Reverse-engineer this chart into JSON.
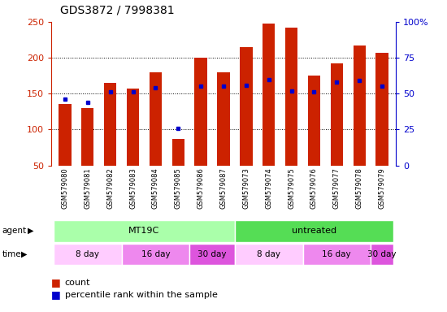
{
  "title": "GDS3872 / 7998381",
  "samples": [
    "GSM579080",
    "GSM579081",
    "GSM579082",
    "GSM579083",
    "GSM579084",
    "GSM579085",
    "GSM579086",
    "GSM579087",
    "GSM579073",
    "GSM579074",
    "GSM579075",
    "GSM579076",
    "GSM579077",
    "GSM579078",
    "GSM579079"
  ],
  "counts": [
    135,
    130,
    165,
    157,
    180,
    87,
    200,
    180,
    215,
    248,
    242,
    175,
    192,
    217,
    207
  ],
  "percentile_ranks": [
    46,
    44,
    51,
    51,
    54,
    26,
    55,
    55,
    56,
    60,
    52,
    51,
    58,
    59,
    55
  ],
  "bar_color": "#cc2200",
  "dot_color": "#0000cc",
  "y_min": 50,
  "y_max": 250,
  "y_ticks_left": [
    50,
    100,
    150,
    200,
    250
  ],
  "y_ticks_right": [
    0,
    25,
    50,
    75,
    100
  ],
  "grid_lines": [
    100,
    150,
    200
  ],
  "agent_groups": [
    {
      "label": "MT19C",
      "start": 0,
      "end": 8,
      "color": "#aaffaa"
    },
    {
      "label": "untreated",
      "start": 8,
      "end": 15,
      "color": "#55dd55"
    }
  ],
  "time_groups": [
    {
      "label": "8 day",
      "start": 0,
      "end": 3,
      "color": "#ffccff"
    },
    {
      "label": "16 day",
      "start": 3,
      "end": 6,
      "color": "#ee88ee"
    },
    {
      "label": "30 day",
      "start": 6,
      "end": 8,
      "color": "#dd55dd"
    },
    {
      "label": "8 day",
      "start": 8,
      "end": 11,
      "color": "#ffccff"
    },
    {
      "label": "16 day",
      "start": 11,
      "end": 14,
      "color": "#ee88ee"
    },
    {
      "label": "30 day",
      "start": 14,
      "end": 15,
      "color": "#dd55dd"
    }
  ],
  "legend_count_label": "count",
  "legend_percentile_label": "percentile rank within the sample",
  "bar_color_hex": "#cc2200",
  "dot_color_hex": "#0000cc",
  "left_axis_color": "#cc2200",
  "right_axis_color": "#0000cc"
}
